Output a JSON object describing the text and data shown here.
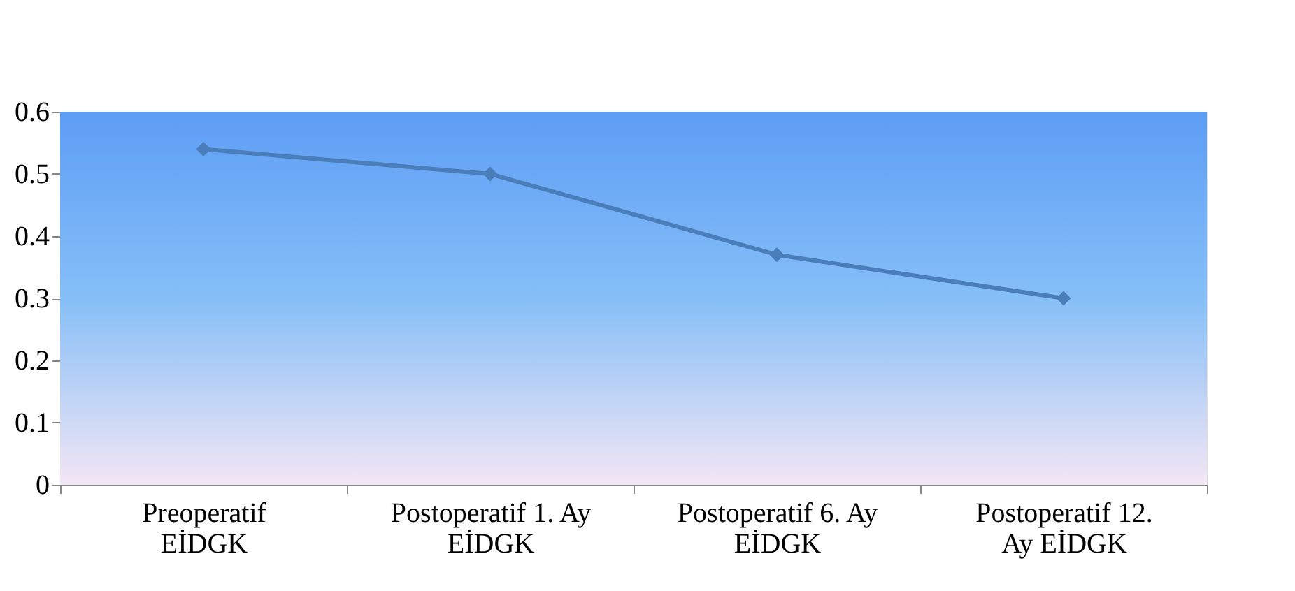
{
  "chart_data": {
    "type": "line",
    "categories": [
      "Preoperatif\nEİDGK",
      "Postoperatif 1. Ay\nEİDGK",
      "Postoperatif 6. Ay\nEİDGK",
      "Postoperatif 12.\nAy EİDGK"
    ],
    "series": [
      {
        "color": "#4a7ebb",
        "values": [
          0.54,
          0.5,
          0.37,
          0.3
        ]
      }
    ],
    "ylim": [
      0,
      0.6
    ],
    "yticks": [
      0,
      0.1,
      0.2,
      0.3,
      0.4,
      0.5,
      0.6
    ],
    "marker": "diamond",
    "line_style": "solid"
  }
}
